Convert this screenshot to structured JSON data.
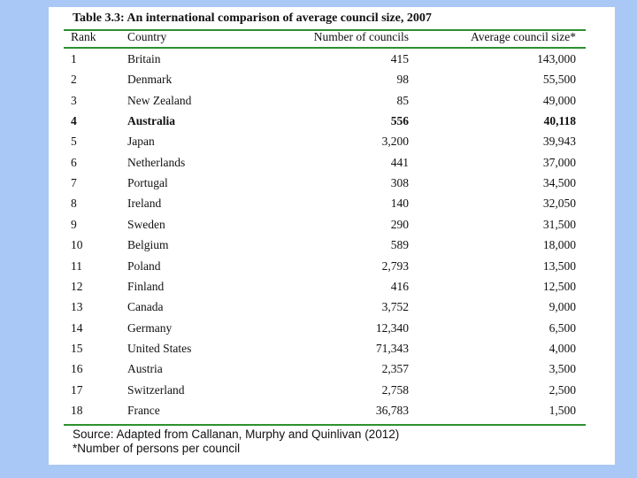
{
  "table": {
    "title": "Table 3.3: An international comparison of average council size, 2007",
    "columns": [
      "Rank",
      "Country",
      "Number of councils",
      "Average council size*"
    ],
    "rows": [
      [
        "1",
        "Britain",
        "415",
        "143,000"
      ],
      [
        "2",
        "Denmark",
        "98",
        "55,500"
      ],
      [
        "3",
        "New Zealand",
        "85",
        "49,000"
      ],
      [
        "4",
        "Australia",
        "556",
        "40,118"
      ],
      [
        "5",
        "Japan",
        "3,200",
        "39,943"
      ],
      [
        "6",
        "Netherlands",
        "441",
        "37,000"
      ],
      [
        "7",
        "Portugal",
        "308",
        "34,500"
      ],
      [
        "8",
        "Ireland",
        "140",
        "32,050"
      ],
      [
        "9",
        "Sweden",
        "290",
        "31,500"
      ],
      [
        "10",
        "Belgium",
        "589",
        "18,000"
      ],
      [
        "11",
        "Poland",
        "2,793",
        "13,500"
      ],
      [
        "12",
        "Finland",
        "416",
        "12,500"
      ],
      [
        "13",
        "Canada",
        "3,752",
        "9,000"
      ],
      [
        "14",
        "Germany",
        "12,340",
        "6,500"
      ],
      [
        "15",
        "United States",
        "71,343",
        "4,000"
      ],
      [
        "16",
        "Austria",
        "2,357",
        "3,500"
      ],
      [
        "17",
        "Switzerland",
        "2,758",
        "2,500"
      ],
      [
        "18",
        "France",
        "36,783",
        "1,500"
      ]
    ],
    "source": "Source: Adapted from Callanan, Murphy and Quinlivan (2012)",
    "note": "*Number of persons per council"
  }
}
